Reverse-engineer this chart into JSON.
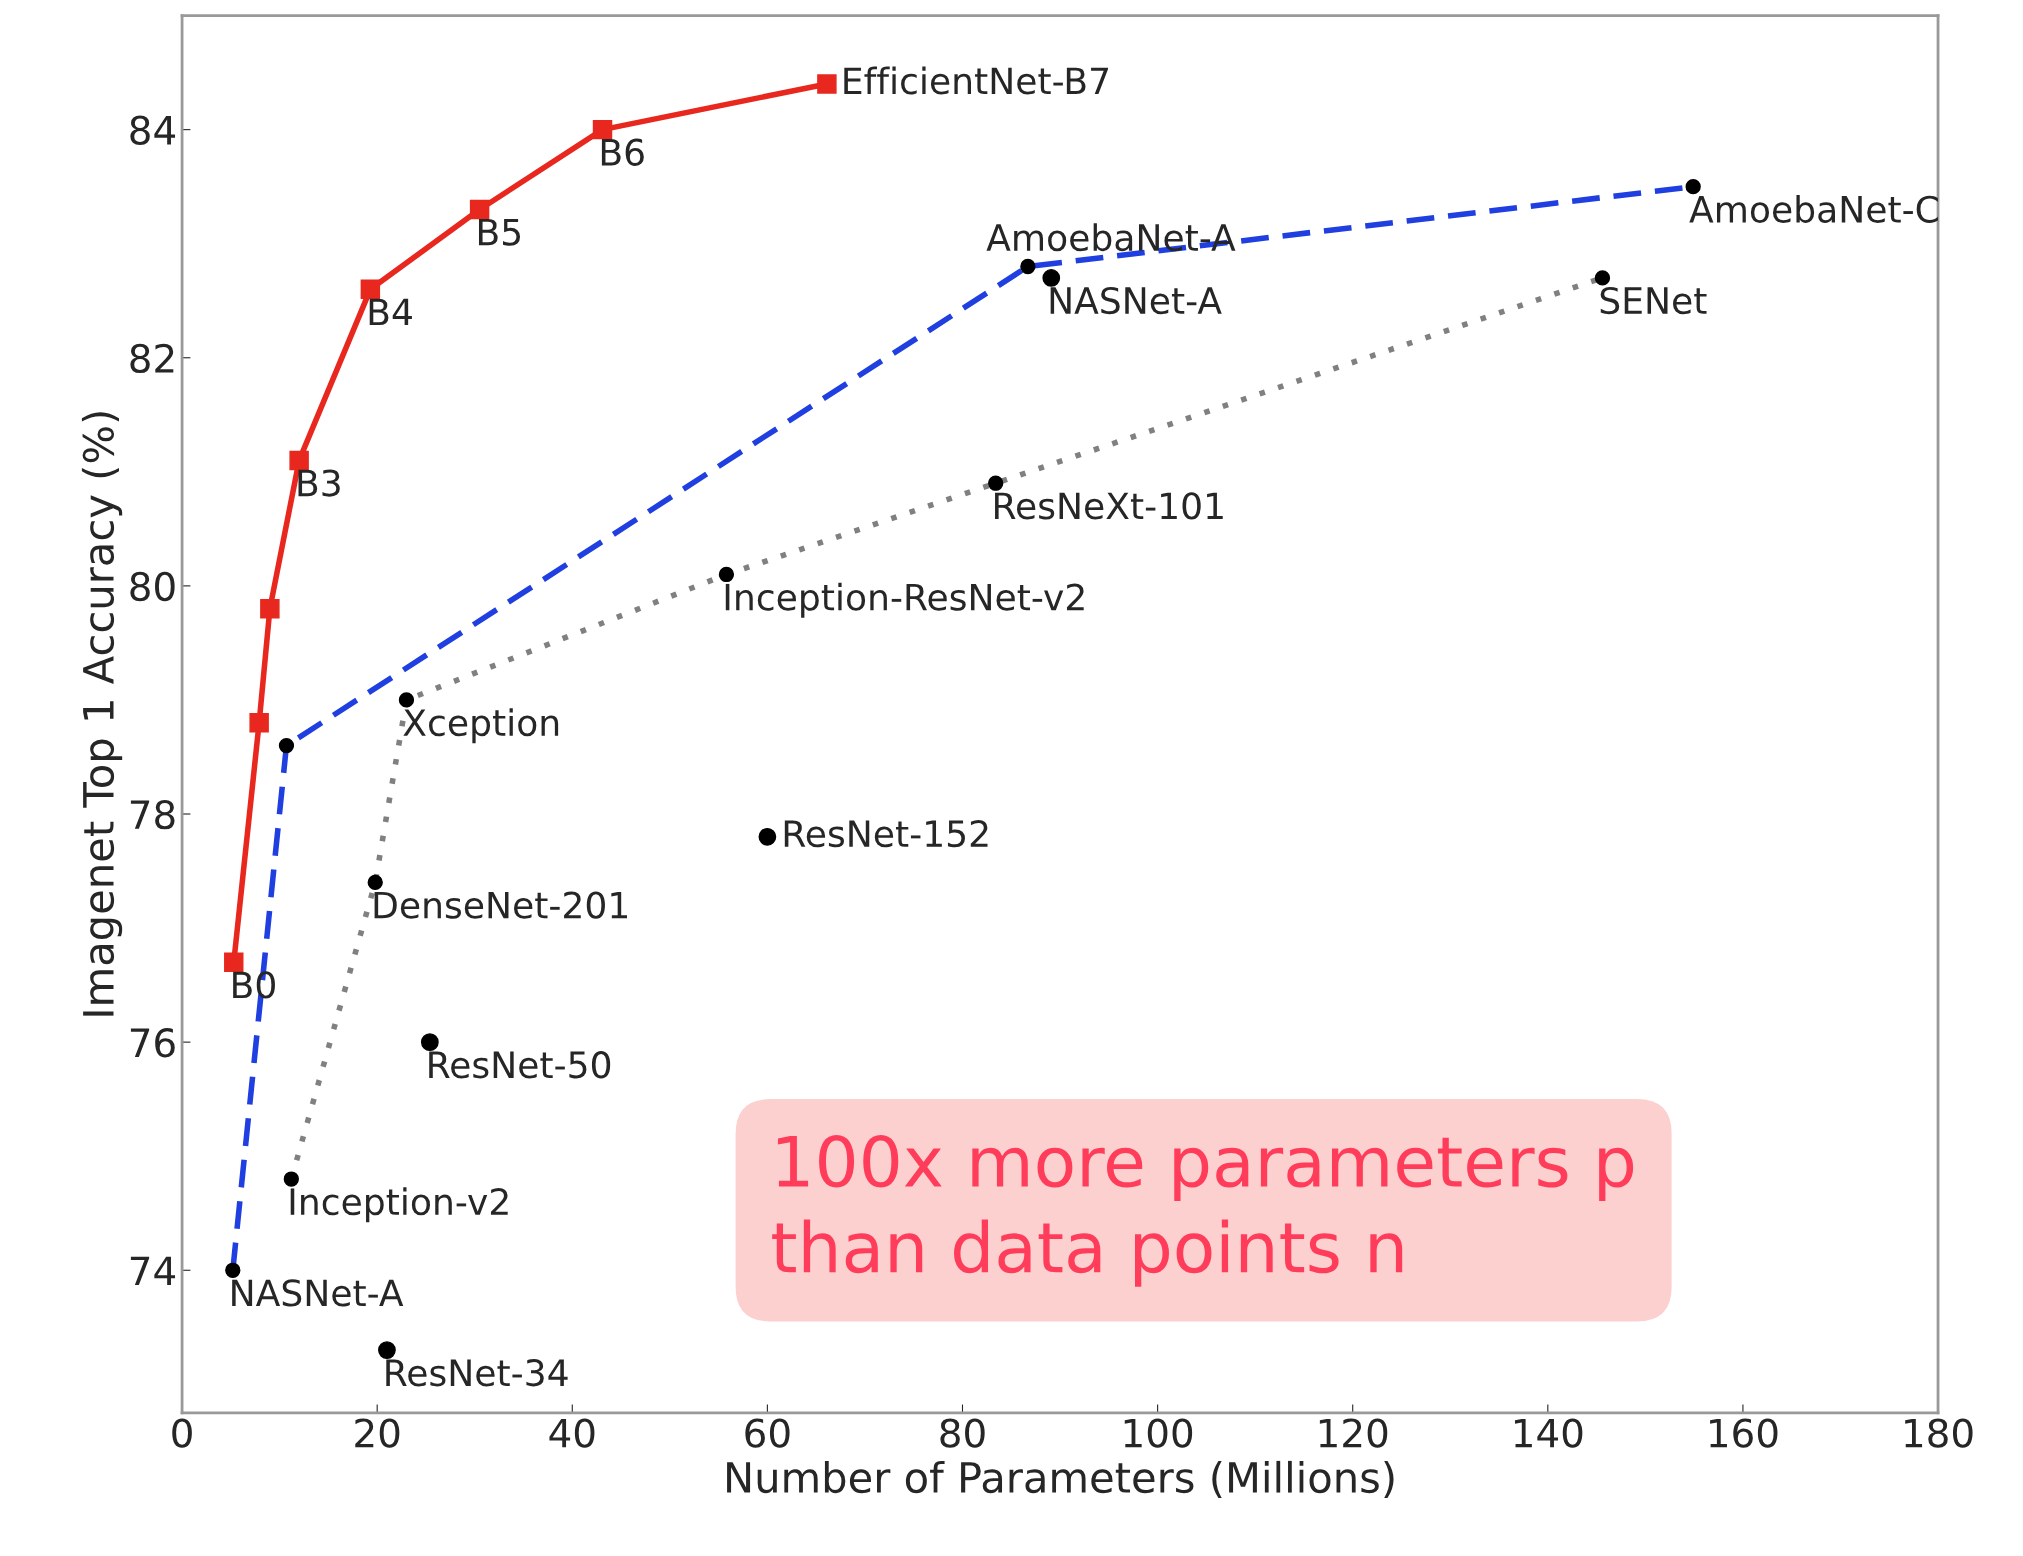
{
  "chart_data": {
    "type": "line",
    "xlabel": "Number of Parameters (Millions)",
    "ylabel": "Imagenet Top 1 Accuracy (%)",
    "xlim": [
      0,
      180
    ],
    "xticks": [
      0,
      20,
      40,
      60,
      80,
      100,
      120,
      140,
      160,
      180
    ],
    "ylim": [
      72.75,
      85.0
    ],
    "yticks": [
      74,
      76,
      78,
      80,
      82,
      84
    ],
    "grid": false,
    "legend": false,
    "series": [
      {
        "color": "#e8281e",
        "marker": "square",
        "line_style": "solid",
        "x": [
          5.3,
          7.9,
          9.0,
          12.0,
          19.3,
          30.5,
          43.1,
          66.1
        ],
        "values": [
          76.7,
          78.8,
          79.8,
          81.1,
          82.6,
          83.3,
          84.0,
          84.4
        ]
      },
      {
        "color": "#1f3fe0",
        "marker": "circle",
        "line_style": "dashed",
        "x": [
          5.2,
          10.7,
          86.7,
          154.9
        ],
        "values": [
          74.0,
          78.6,
          82.8,
          83.5
        ]
      },
      {
        "color": "#808080",
        "marker": "circle",
        "line_style": "dotted",
        "x": [
          11.2,
          19.8,
          23.0,
          55.8,
          83.4,
          145.6
        ],
        "values": [
          74.8,
          77.4,
          79.0,
          80.1,
          80.9,
          82.7
        ]
      },
      {
        "type": "scatter",
        "color": "#000000",
        "marker": "circle",
        "x": [
          89.1,
          60.0,
          25.4,
          21.0
        ],
        "values": [
          82.7,
          77.8,
          76.0,
          73.3
        ]
      }
    ],
    "annotations": [
      {
        "text": "B0",
        "x": 5.3,
        "y": 76.7
      },
      {
        "text": "B3",
        "x": 12.0,
        "y": 81.1
      },
      {
        "text": "B4",
        "x": 19.3,
        "y": 82.6
      },
      {
        "text": "B5",
        "x": 30.5,
        "y": 83.3
      },
      {
        "text": "B6",
        "x": 43.1,
        "y": 84.0
      },
      {
        "text": "EfficientNet-B7",
        "x": 66.1,
        "y": 84.4
      },
      {
        "text": "NASNet-A",
        "x": 5.2,
        "y": 74.0
      },
      {
        "text": "AmoebaNet-A",
        "x": 86.7,
        "y": 82.8
      },
      {
        "text": "AmoebaNet-C",
        "x": 154.9,
        "y": 83.5
      },
      {
        "text": "Inception-v2",
        "x": 11.2,
        "y": 74.8
      },
      {
        "text": "DenseNet-201",
        "x": 19.8,
        "y": 77.4
      },
      {
        "text": "Xception",
        "x": 23.0,
        "y": 79.0
      },
      {
        "text": "Inception-ResNet-v2",
        "x": 55.8,
        "y": 80.1
      },
      {
        "text": "ResNeXt-101",
        "x": 83.4,
        "y": 80.9
      },
      {
        "text": "SENet",
        "x": 145.6,
        "y": 82.7
      },
      {
        "text": "NASNet-A",
        "x": 89.1,
        "y": 82.7
      },
      {
        "text": "ResNet-152",
        "x": 60.0,
        "y": 77.8
      },
      {
        "text": "ResNet-50",
        "x": 25.4,
        "y": 76.0
      },
      {
        "text": "ResNet-34",
        "x": 21.0,
        "y": 73.3
      },
      "100x more parameters p\nthan data points n"
    ]
  }
}
